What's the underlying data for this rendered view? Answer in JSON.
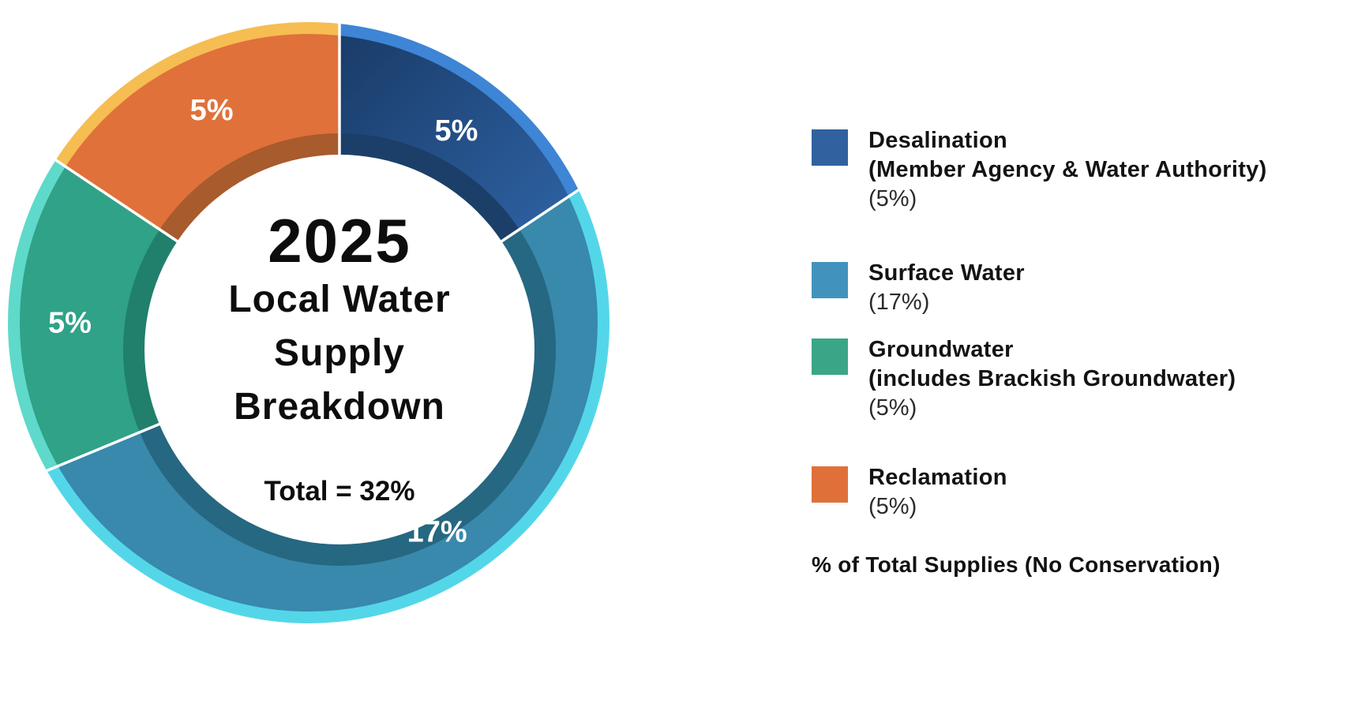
{
  "chart_data": {
    "type": "pie",
    "subtype": "donut-3d",
    "title": "2025 Local Water Supply Breakdown",
    "total_percent": 32,
    "center_label": {
      "year": "2025",
      "line1": "Local Water",
      "line2": "Supply",
      "line3": "Breakdown",
      "total": "Total = 32%"
    },
    "footnote": "% of Total Supplies (No Conservation)",
    "legend_position": "right",
    "slices": [
      {
        "key": "desalination",
        "name": "Desalination (Member Agency & Water Authority)",
        "value": 5,
        "slice_label": "5%",
        "legend_title_lines": [
          "Desalination",
          "(Member Agency & Water Authority)"
        ],
        "legend_value": "(5%)",
        "colors": {
          "main": "#2e62a4",
          "main2": "#1b3e6c",
          "rim": "#3e85d5",
          "shadow": "#1c3f69",
          "legend": "#31619f"
        }
      },
      {
        "key": "surface-water",
        "name": "Surface Water",
        "value": 17,
        "slice_label": "17%",
        "legend_title_lines": [
          "Surface Water"
        ],
        "legend_value": "(17%)",
        "colors": {
          "main": "#3889ac",
          "rim": "#54d6e9",
          "shadow": "#266781",
          "legend": "#4193bd"
        }
      },
      {
        "key": "groundwater",
        "name": "Groundwater (includes Brackish Groundwater)",
        "value": 5,
        "slice_label": "5%",
        "legend_title_lines": [
          "Groundwater",
          "(includes Brackish Groundwater)"
        ],
        "legend_value": "(5%)",
        "colors": {
          "main": "#2fa287",
          "rim": "#5fd9ca",
          "shadow": "#20806c",
          "legend": "#3aa587"
        }
      },
      {
        "key": "reclamation",
        "name": "Reclamation",
        "value": 5,
        "slice_label": "5%",
        "legend_title_lines": [
          "Reclamation"
        ],
        "legend_value": "(5%)",
        "colors": {
          "main": "#e0713a",
          "rim": "#f5bd52",
          "shadow": "#a85b2c",
          "legend": "#e0703a"
        }
      }
    ]
  }
}
